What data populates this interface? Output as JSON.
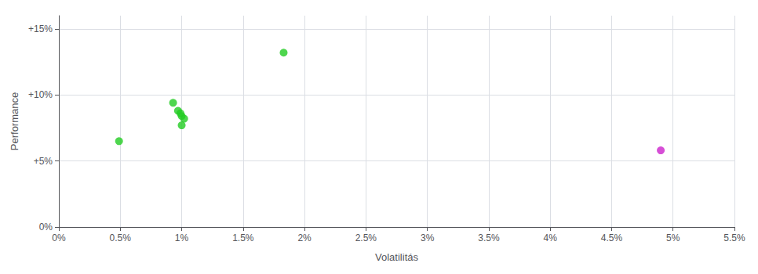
{
  "chart_data": {
    "type": "scatter",
    "xlabel": "Volatilitás",
    "ylabel": "Performance",
    "xlim": [
      0.0,
      0.055
    ],
    "ylim": [
      0.0,
      0.16
    ],
    "xticks": [
      {
        "value": 0.0,
        "label": "0%"
      },
      {
        "value": 0.005,
        "label": "0.5%"
      },
      {
        "value": 0.01,
        "label": "1%"
      },
      {
        "value": 0.015,
        "label": "1.5%"
      },
      {
        "value": 0.02,
        "label": "2%"
      },
      {
        "value": 0.025,
        "label": "2.5%"
      },
      {
        "value": 0.03,
        "label": "3%"
      },
      {
        "value": 0.035,
        "label": "3.5%"
      },
      {
        "value": 0.04,
        "label": "4%"
      },
      {
        "value": 0.045,
        "label": "4.5%"
      },
      {
        "value": 0.05,
        "label": "5%"
      },
      {
        "value": 0.055,
        "label": "5.5%"
      }
    ],
    "yticks": [
      {
        "value": 0.0,
        "label": "0%"
      },
      {
        "value": 0.05,
        "label": "+5%"
      },
      {
        "value": 0.1,
        "label": "+10%"
      },
      {
        "value": 0.15,
        "label": "+15%"
      }
    ],
    "grid": true,
    "series": [
      {
        "color": "#22cc22",
        "x": [
          0.0049,
          0.0093,
          0.0097,
          0.0099,
          0.01,
          0.0102,
          0.01,
          0.0183
        ],
        "values": [
          0.065,
          0.094,
          0.088,
          0.086,
          0.084,
          0.082,
          0.077,
          0.132
        ]
      },
      {
        "color": "#cc22cc",
        "x": [
          0.049
        ],
        "values": [
          0.058
        ]
      }
    ]
  }
}
